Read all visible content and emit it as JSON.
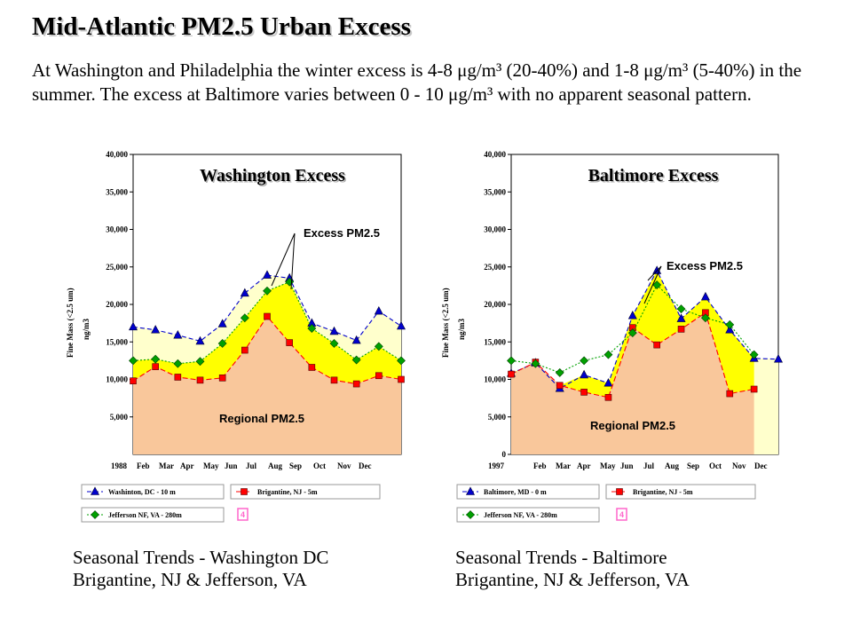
{
  "page": {
    "title": "Mid-Atlantic PM2.5 Urban Excess",
    "summary": "At Washington and Philadelphia the winter excess is 4-8 μg/m³ (20-40%) and 1-8 μg/m³ (5-40%) in the summer. The excess at Baltimore varies between 0 - 10 μg/m³ with no apparent seasonal pattern."
  },
  "captions": [
    {
      "line1": "Seasonal Trends - Washington DC",
      "line2": "Brigantine, NJ & Jefferson, VA"
    },
    {
      "line1": "Seasonal Trends - Baltimore",
      "line2": "Brigantine, NJ & Jefferson, VA"
    }
  ],
  "colors": {
    "regional_fill": "#f9c79b",
    "excess_fill": "#ffff00",
    "upper_fill": "#ffffcc",
    "urban_line": "#0000cc",
    "rural_line": "#ff0000",
    "jefferson_line": "#00a000",
    "legend_box_fill": "#ff66cc"
  },
  "chart_data": [
    {
      "type": "area",
      "title": "Washington Excess",
      "ylabel": "Fine Mass (<2.5 um) ng/m3",
      "ylim": [
        0,
        40000
      ],
      "yticks": [
        "5,000",
        "10,000",
        "15,000",
        "20,000",
        "25,000",
        "30,000",
        "35,000",
        "40,000"
      ],
      "x_labels": [
        "1988",
        "Feb",
        "Mar",
        "Apr",
        "May",
        "Jun",
        "Jul",
        "Aug",
        "Sep",
        "Oct",
        "Nov",
        "Dec"
      ],
      "annotations": {
        "excess": "Excess PM2.5",
        "regional": "Regional PM2.5"
      },
      "series": [
        {
          "name": "Washinton, DC - 10 m",
          "marker": "triangle",
          "values": [
            17000,
            16600,
            15900,
            15100,
            17400,
            21500,
            23900,
            23500,
            17500,
            16400,
            15200,
            19100,
            17100
          ]
        },
        {
          "name": "Brigantine, NJ - 5m",
          "marker": "square",
          "values": [
            9800,
            11700,
            10300,
            9900,
            10200,
            13900,
            18400,
            14900,
            11600,
            9900,
            9400,
            10500,
            10000
          ]
        },
        {
          "name": "Jefferson NF, VA - 280m",
          "marker": "diamond",
          "values": [
            12500,
            12700,
            12100,
            12400,
            14800,
            18200,
            21800,
            23000,
            16800,
            14800,
            12600,
            14400,
            12500
          ]
        }
      ],
      "legend_box": "4"
    },
    {
      "type": "area",
      "title": "Baltimore Excess",
      "ylabel": "Fine Mass (<2.5 um) ng/m3",
      "ylim": [
        0,
        40000
      ],
      "yticks": [
        "0",
        "5,000",
        "10,000",
        "15,000",
        "20,000",
        "25,000",
        "30,000",
        "35,000",
        "40,000"
      ],
      "x_labels": [
        "1997",
        "Feb",
        "Mar",
        "Apr",
        "May",
        "Jun",
        "Jul",
        "Aug",
        "Sep",
        "Oct",
        "Nov",
        "Dec"
      ],
      "annotations": {
        "excess": "Excess PM2.5",
        "regional": "Regional PM2.5"
      },
      "series": [
        {
          "name": "Baltimore, MD - 0 m",
          "marker": "triangle",
          "values": [
            10800,
            12200,
            8800,
            10600,
            9500,
            18500,
            24500,
            18100,
            21000,
            16600,
            12800,
            12700
          ]
        },
        {
          "name": "Brigantine, NJ - 5m",
          "marker": "square",
          "values": [
            10700,
            12300,
            9200,
            8300,
            7600,
            16900,
            14600,
            16700,
            18900,
            8100,
            8700,
            null
          ]
        },
        {
          "name": "Jefferson NF, VA - 280m",
          "marker": "diamond",
          "values": [
            12500,
            12100,
            10900,
            12500,
            13300,
            16200,
            22600,
            19400,
            18200,
            17300,
            13300,
            null
          ]
        }
      ],
      "legend_box": "4"
    }
  ]
}
